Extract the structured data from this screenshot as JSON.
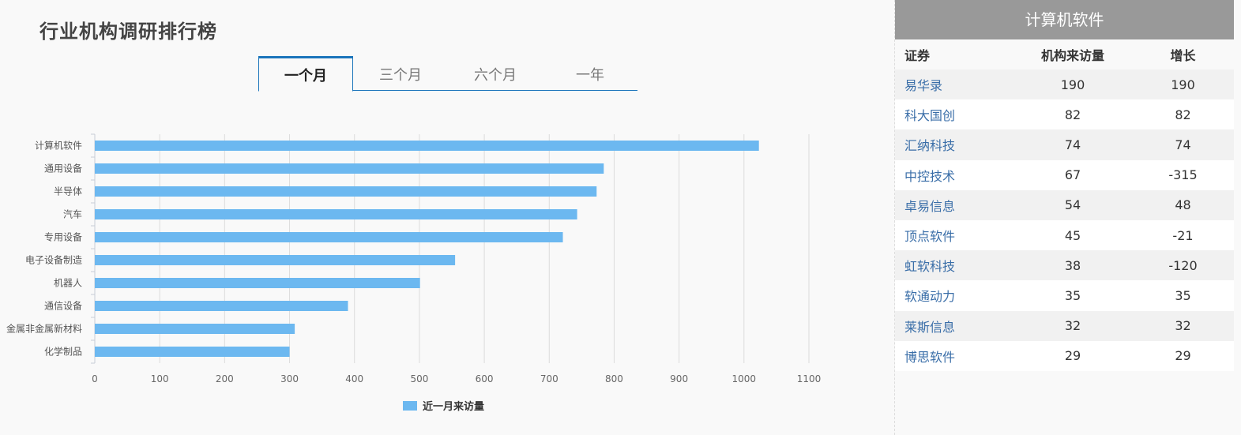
{
  "title": "行业机构调研排行榜",
  "tabs": [
    {
      "label": "一个月",
      "active": true
    },
    {
      "label": "三个月",
      "active": false
    },
    {
      "label": "六个月",
      "active": false
    },
    {
      "label": "一年",
      "active": false
    }
  ],
  "chart_data": {
    "type": "bar",
    "orientation": "horizontal",
    "categories": [
      "计算机软件",
      "通用设备",
      "半导体",
      "汽车",
      "专用设备",
      "电子设备制造",
      "机器人",
      "通信设备",
      "金属非金属新材料",
      "化学制品"
    ],
    "series": [
      {
        "name": "近一月来访量",
        "values": [
          1023,
          784,
          773,
          743,
          721,
          555,
          501,
          390,
          308,
          300
        ],
        "color": "#6cb8f0"
      }
    ],
    "xlim": [
      0,
      1100
    ],
    "xticks": [
      0,
      100,
      200,
      300,
      400,
      500,
      600,
      700,
      800,
      900,
      1000,
      1100
    ],
    "grid": true,
    "legend_position": "bottom-center"
  },
  "panel": {
    "header": "计算机软件",
    "columns": [
      "证券",
      "机构来访量",
      "增长"
    ],
    "rows": [
      [
        "易华录",
        "190",
        "190"
      ],
      [
        "科大国创",
        "82",
        "82"
      ],
      [
        "汇纳科技",
        "74",
        "74"
      ],
      [
        "中控技术",
        "67",
        "-315"
      ],
      [
        "卓易信息",
        "54",
        "48"
      ],
      [
        "顶点软件",
        "45",
        "-21"
      ],
      [
        "虹软科技",
        "38",
        "-120"
      ],
      [
        "软通动力",
        "35",
        "35"
      ],
      [
        "莱斯信息",
        "32",
        "32"
      ],
      [
        "博思软件",
        "29",
        "29"
      ]
    ]
  }
}
